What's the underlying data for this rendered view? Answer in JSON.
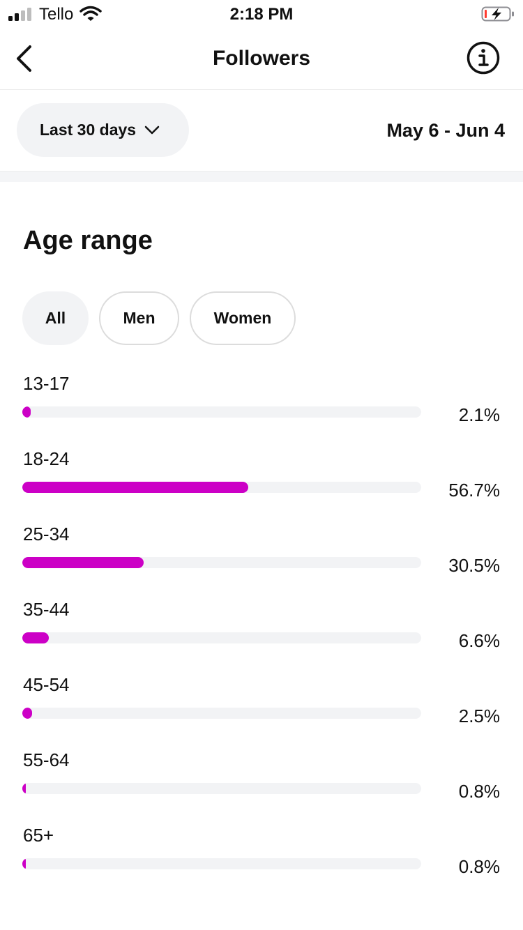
{
  "status_bar": {
    "carrier": "Tello",
    "time": "2:18 PM",
    "signal_icon": "cellular-signal-icon",
    "wifi_icon": "wifi-icon",
    "battery_icon": "battery-charging-icon"
  },
  "nav": {
    "title": "Followers",
    "back_icon": "chevron-left-icon",
    "info_icon": "info-circle-icon"
  },
  "filter": {
    "period_label": "Last 30 days",
    "period_icon": "chevron-down-icon",
    "date_range": "May 6 - Jun 4"
  },
  "section": {
    "title": "Age range",
    "segments": [
      {
        "label": "All",
        "selected": true
      },
      {
        "label": "Men",
        "selected": false
      },
      {
        "label": "Women",
        "selected": false
      }
    ]
  },
  "colors": {
    "accent": "#cc00c6",
    "track": "#f2f3f5"
  },
  "age_ranges": [
    {
      "label": "13-17",
      "percent": 2.1,
      "percent_text": "2.1%"
    },
    {
      "label": "18-24",
      "percent": 56.7,
      "percent_text": "56.7%"
    },
    {
      "label": "25-34",
      "percent": 30.5,
      "percent_text": "30.5%"
    },
    {
      "label": "35-44",
      "percent": 6.6,
      "percent_text": "6.6%"
    },
    {
      "label": "45-54",
      "percent": 2.5,
      "percent_text": "2.5%"
    },
    {
      "label": "55-64",
      "percent": 0.8,
      "percent_text": "0.8%"
    },
    {
      "label": "65+",
      "percent": 0.8,
      "percent_text": "0.8%"
    }
  ]
}
